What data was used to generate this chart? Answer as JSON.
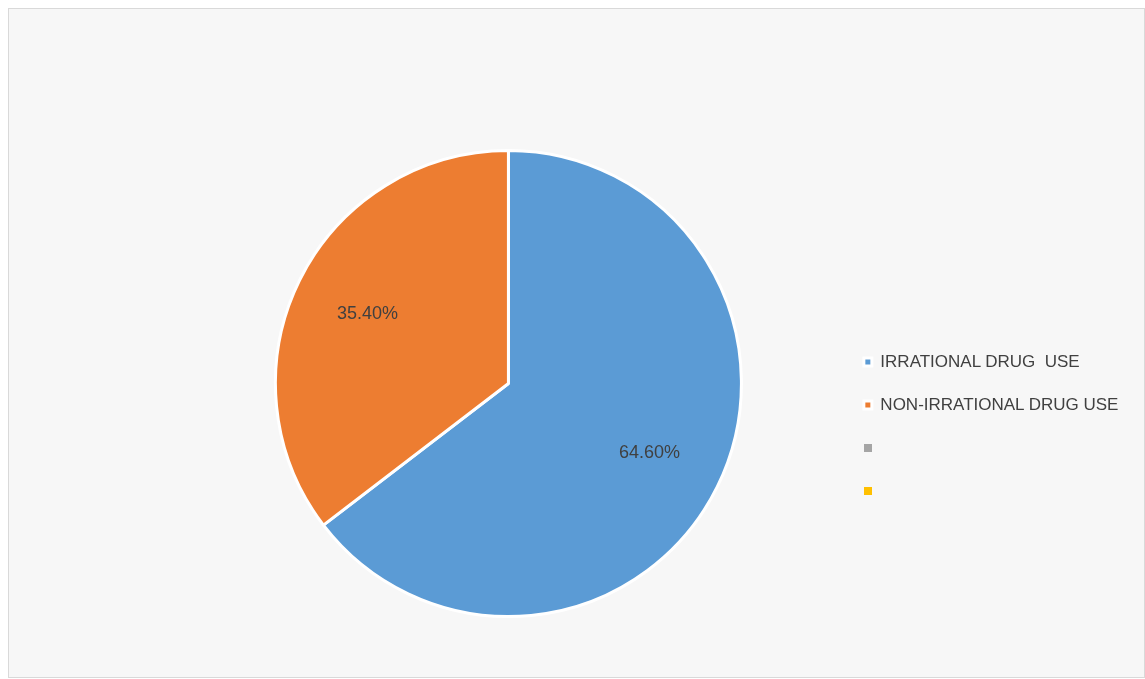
{
  "chart_data": {
    "type": "pie",
    "categories": [
      "IRRATIONAL DRUG  USE",
      "NON-IRRATIONAL DRUG USE"
    ],
    "values": [
      64.6,
      35.4
    ],
    "colors": [
      "#5b9bd5",
      "#ed7d31"
    ],
    "value_labels": [
      "64.60%",
      "35.40%"
    ],
    "legend": "right"
  }
}
